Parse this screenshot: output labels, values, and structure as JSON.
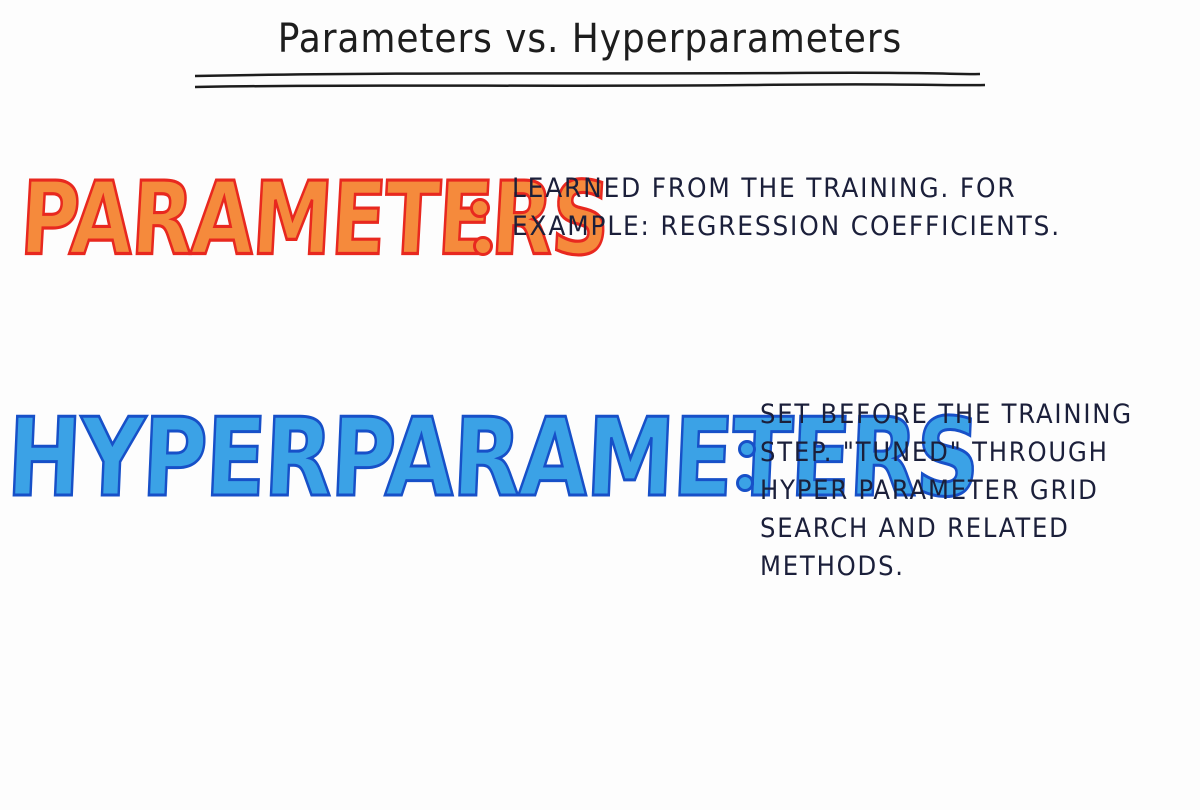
{
  "title": "Parameters vs. Hyperparameters",
  "sections": [
    {
      "term": "PARAMETERS",
      "description_lines": [
        "LEARNED FROM THE TRAINING. FOR",
        "EXAMPLE: REGRESSION COEFFICIENTS."
      ],
      "fill_color": "#f58a3c",
      "outline_color": "#e8281f"
    },
    {
      "term": "HYPERPARAMETERS",
      "description_lines": [
        "SET BEFORE THE TRAINING",
        "STEP. \"TUNED\" THROUGH",
        "HYPER PARAMETER GRID",
        "SEARCH AND RELATED",
        "METHODS."
      ],
      "fill_color": "#3ba2e6",
      "outline_color": "#1750c8"
    }
  ],
  "ink_color": "#1b1f3a"
}
